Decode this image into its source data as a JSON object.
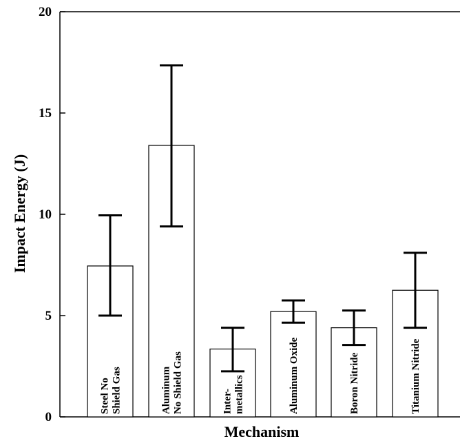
{
  "chart_data": {
    "type": "bar",
    "xlabel": "Mechanism",
    "ylabel": "Impact Energy (J)",
    "ylim": [
      0,
      20
    ],
    "yticks": [
      0,
      5,
      10,
      15,
      20
    ],
    "categories": [
      [
        "Steel No",
        "Shield Gas"
      ],
      [
        "Aluminum",
        "No Shield Gas"
      ],
      [
        "Inter-",
        "metallics"
      ],
      [
        "Aluminum Oxide"
      ],
      [
        "Boron Nitride"
      ],
      [
        "Titanium Nitride"
      ]
    ],
    "values": [
      7.45,
      13.4,
      3.35,
      5.2,
      4.4,
      6.25
    ],
    "error_low": [
      5.0,
      9.4,
      2.25,
      4.65,
      3.55,
      4.4
    ],
    "error_high": [
      9.95,
      17.35,
      4.4,
      5.75,
      5.25,
      8.1
    ],
    "bar_fill": "#ffffff",
    "bar_stroke": "#000000",
    "grid": false
  }
}
